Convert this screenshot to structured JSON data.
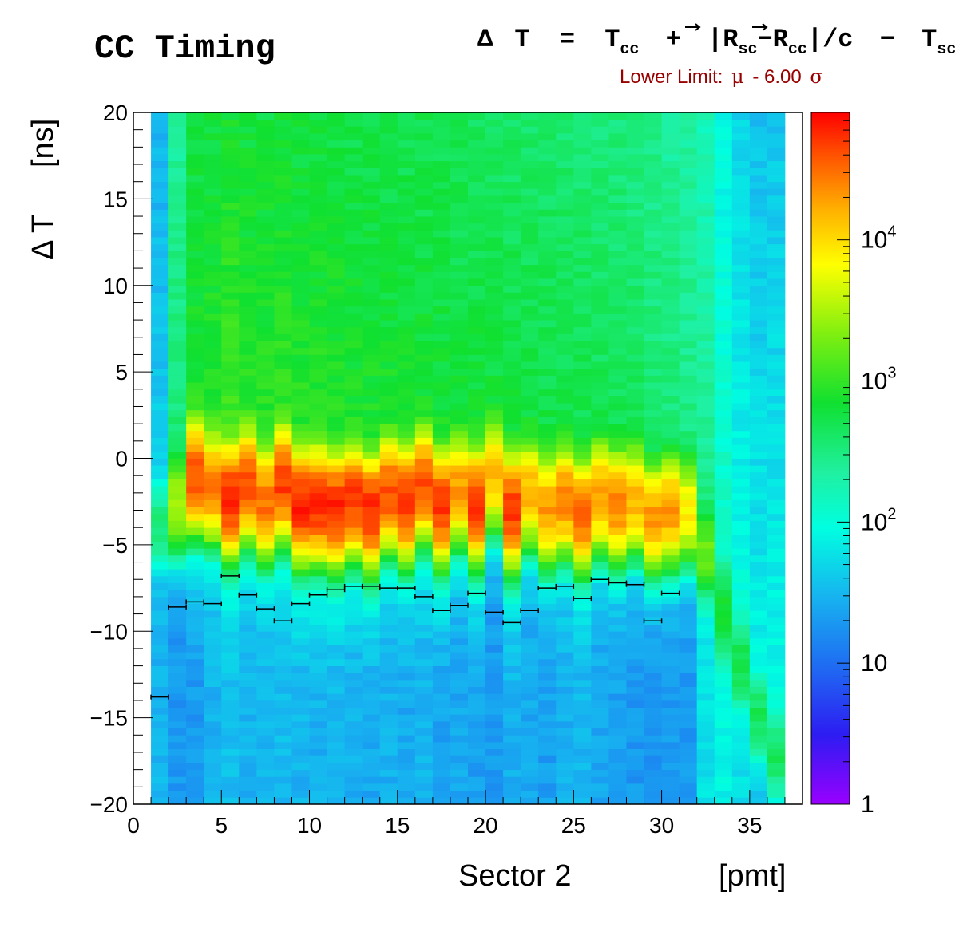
{
  "chart_data": {
    "type": "heatmap",
    "title": "CC Timing",
    "formula": {
      "delta": "Δ",
      "T1": "T",
      "eq": "=",
      "Tcc": "T",
      "cc_sub": "cc",
      "plus": "+",
      "bar_open": "|",
      "R1": "R",
      "sc_sub": "sc",
      "minus1": "−",
      "R2": "R",
      "cc_sub2": "cc",
      "bar_close": "|/c",
      "minus2": "−",
      "Tsc": "T",
      "sc_sub2": "sc"
    },
    "lower_limit": {
      "prefix": "Lower Limit:",
      "mu": "μ",
      "middle": "- 6.00",
      "sigma": "σ",
      "color": "#990000"
    },
    "xlabel": "Sector 2",
    "xunit": "[pmt]",
    "ylabel_symbol": "Δ T",
    "ylabel_unit": "[ns]",
    "xlim": [
      0,
      38
    ],
    "ylim": [
      -20,
      20
    ],
    "x_ticks": [
      "0",
      "5",
      "10",
      "15",
      "20",
      "25",
      "30",
      "35"
    ],
    "y_ticks": [
      "20",
      "15",
      "10",
      "5",
      "0",
      "−5",
      "−10",
      "−15",
      "−20"
    ],
    "colorbar": {
      "scale": "log",
      "range": [
        1,
        80000
      ],
      "tick_labels": [
        {
          "base": "1",
          "exp": "",
          "value": 1
        },
        {
          "base": "10",
          "exp": "",
          "value": 10
        },
        {
          "base": "10",
          "exp": "2",
          "value": 100
        },
        {
          "base": "10",
          "exp": "3",
          "value": 1000
        },
        {
          "base": "10",
          "exp": "4",
          "value": 10000
        }
      ]
    },
    "pmt_bins": [
      1,
      2,
      3,
      4,
      5,
      6,
      7,
      8,
      9,
      10,
      11,
      12,
      13,
      14,
      15,
      16,
      17,
      18,
      19,
      20,
      21,
      22,
      23,
      24,
      25,
      26,
      27,
      28,
      29,
      30,
      31,
      32,
      33,
      34,
      35,
      36
    ],
    "peak_position_ns": [
      -4.0,
      -2.8,
      -1.0,
      -1.6,
      -2.3,
      -1.5,
      -2.6,
      -1.4,
      -2.7,
      -2.6,
      -2.9,
      -2.4,
      -3.1,
      -2.0,
      -2.6,
      -1.5,
      -2.8,
      -1.8,
      -2.7,
      -1.0,
      -3.0,
      -2.0,
      -3.0,
      -2.4,
      -3.3,
      -2.2,
      -2.7,
      -2.4,
      -3.4,
      -3.0,
      -3.0,
      -5.5,
      -9.0,
      -12.0,
      -15.0,
      -17.5
    ],
    "peak_counts": [
      300,
      3000,
      40000,
      25000,
      60000,
      40000,
      30000,
      50000,
      60000,
      60000,
      60000,
      50000,
      60000,
      40000,
      50000,
      40000,
      50000,
      20000,
      50000,
      15000,
      50000,
      15000,
      20000,
      25000,
      30000,
      20000,
      25000,
      15000,
      20000,
      20000,
      8000,
      1500,
      700,
      500,
      400,
      400
    ],
    "tail_counts": [
      30,
      20,
      20,
      30,
      35,
      30,
      30,
      35,
      30,
      28,
      30,
      28,
      25,
      28,
      25,
      30,
      22,
      25,
      22,
      20,
      28,
      25,
      22,
      28,
      30,
      25,
      22,
      20,
      18,
      20,
      20,
      60,
      80,
      60,
      40,
      20
    ],
    "plateau_counts": [
      50,
      400,
      900,
      1000,
      1200,
      1000,
      1000,
      1100,
      1000,
      1000,
      950,
      900,
      900,
      850,
      850,
      800,
      800,
      750,
      750,
      700,
      700,
      650,
      650,
      600,
      600,
      550,
      550,
      500,
      450,
      400,
      350,
      300,
      150,
      100,
      80,
      90
    ],
    "lower_limit_markers": {
      "x": [
        1,
        2,
        3,
        4,
        5,
        6,
        7,
        8,
        9,
        10,
        11,
        12,
        13,
        14,
        15,
        16,
        17,
        18,
        19,
        20,
        21,
        22,
        23,
        24,
        25,
        26,
        27,
        28,
        29,
        30
      ],
      "y": [
        -13.8,
        -8.6,
        -8.3,
        -8.4,
        -6.8,
        -7.9,
        -8.7,
        -9.4,
        -8.4,
        -7.9,
        -7.6,
        -7.4,
        -7.4,
        -7.5,
        -7.5,
        -8.0,
        -8.8,
        -8.5,
        -7.8,
        -8.9,
        -9.5,
        -8.8,
        -7.5,
        -7.4,
        -8.1,
        -7.0,
        -7.2,
        -7.3,
        -9.4,
        -7.8
      ]
    }
  }
}
